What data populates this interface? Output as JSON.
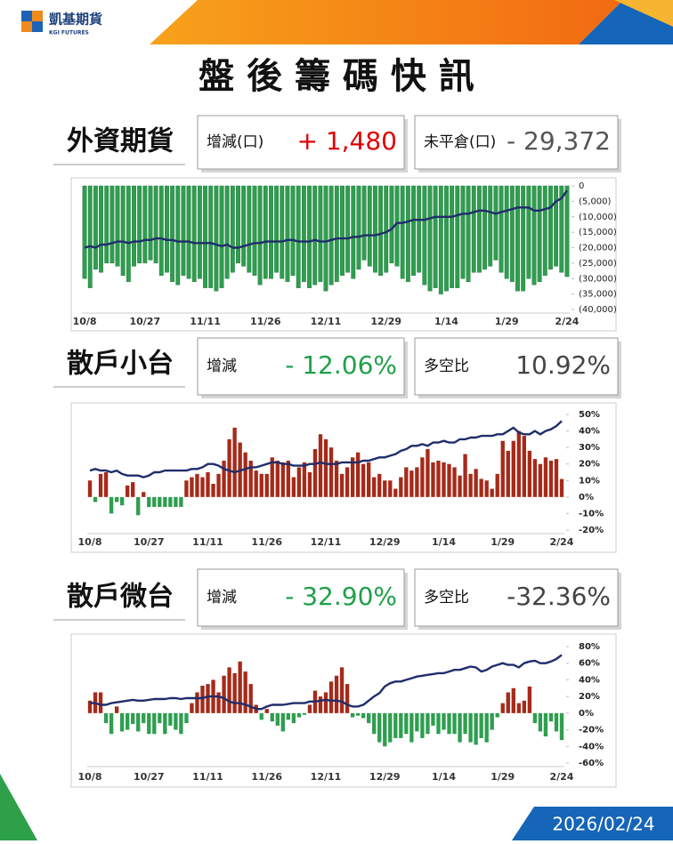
{
  "header": {
    "brand": "凱基期貨",
    "brand_en": "KGI FUTURES"
  },
  "title": "盤 後 籌 碼 快 訊",
  "date": "2026/02/24",
  "sections": [
    {
      "name": "外資期貨",
      "stats": [
        {
          "label": "增減(口)",
          "value": "+ 1,480",
          "color": "#e00000"
        },
        {
          "label": "未平倉(口)",
          "value": "- 29,372",
          "color": "#555555"
        }
      ]
    },
    {
      "name": "散戶小台",
      "stats": [
        {
          "label": "增減",
          "value": "- 12.06%",
          "color": "#1fa04a"
        },
        {
          "label": "多空比",
          "value": "10.92%",
          "color": "#444444"
        }
      ]
    },
    {
      "name": "散戶微台",
      "stats": [
        {
          "label": "增減",
          "value": "- 32.90%",
          "color": "#1fa04a"
        },
        {
          "label": "多空比",
          "value": "-32.36%",
          "color": "#444444"
        }
      ]
    }
  ],
  "chart_data": [
    {
      "type": "bar",
      "categories": [
        "10/8",
        null,
        null,
        null,
        null,
        null,
        null,
        null,
        null,
        null,
        null,
        "10/27",
        null,
        null,
        null,
        null,
        null,
        null,
        null,
        null,
        null,
        null,
        "11/11",
        null,
        null,
        null,
        null,
        null,
        null,
        null,
        null,
        null,
        null,
        "11/26",
        null,
        null,
        null,
        null,
        null,
        null,
        null,
        null,
        null,
        null,
        "12/11",
        null,
        null,
        null,
        null,
        null,
        null,
        null,
        null,
        null,
        null,
        "12/29",
        null,
        null,
        null,
        null,
        null,
        null,
        null,
        null,
        null,
        null,
        "1/14",
        null,
        null,
        null,
        null,
        null,
        null,
        null,
        null,
        null,
        null,
        "1/29",
        null,
        null,
        null,
        null,
        null,
        null,
        null,
        null,
        null,
        null,
        "2/24"
      ],
      "series": [
        {
          "type": "bar",
          "color": "#2e9e4f",
          "values": [
            -30000,
            -33000,
            -27000,
            -28000,
            -25000,
            -25000,
            -26000,
            -29000,
            -31000,
            -26000,
            -25000,
            -25000,
            -24000,
            -25000,
            -29000,
            -28000,
            -31000,
            -32000,
            -29000,
            -30000,
            -31000,
            -30000,
            -33000,
            -33000,
            -34000,
            -33000,
            -30000,
            -28000,
            -25000,
            -26000,
            -28000,
            -29000,
            -32000,
            -30000,
            -30000,
            -28000,
            -30000,
            -31000,
            -29000,
            -33000,
            -31000,
            -33000,
            -32000,
            -31000,
            -34000,
            -32000,
            -31000,
            -29000,
            -28000,
            -30000,
            -27000,
            -24000,
            -26000,
            -28000,
            -29000,
            -28000,
            -25000,
            -26000,
            -30000,
            -31000,
            -29000,
            -28000,
            -32000,
            -34000,
            -33000,
            -35000,
            -34000,
            -33000,
            -33000,
            -30000,
            -31000,
            -28000,
            -28000,
            -27000,
            -26000,
            -24000,
            -28000,
            -30000,
            -31000,
            -34000,
            -34000,
            -30000,
            -32000,
            -31000,
            -29000,
            -27000,
            -26000,
            -28000,
            -29372
          ]
        },
        {
          "type": "line",
          "color": "#1f2d6b",
          "values": [
            -20000,
            -19500,
            -20000,
            -19000,
            -19000,
            -18500,
            -18000,
            -18000,
            -18500,
            -18000,
            -18000,
            -17500,
            -17500,
            -17000,
            -17000,
            -17500,
            -17500,
            -18000,
            -18000,
            -18000,
            -18500,
            -18500,
            -18500,
            -18500,
            -19000,
            -19500,
            -19000,
            -20000,
            -20000,
            -19500,
            -19000,
            -18500,
            -18500,
            -18000,
            -18000,
            -18000,
            -18000,
            -17500,
            -17500,
            -18000,
            -18000,
            -18000,
            -17500,
            -18000,
            -18000,
            -17500,
            -17000,
            -17000,
            -17000,
            -16500,
            -16500,
            -16000,
            -16000,
            -16000,
            -15500,
            -15000,
            -14000,
            -12000,
            -12000,
            -11500,
            -11000,
            -11000,
            -11000,
            -10500,
            -10000,
            -10000,
            -10000,
            -10000,
            -9500,
            -9000,
            -9000,
            -8500,
            -8000,
            -8000,
            -8500,
            -9000,
            -8500,
            -8000,
            -7500,
            -7000,
            -7000,
            -7000,
            -8000,
            -8000,
            -7500,
            -7000,
            -5000,
            -4000,
            -1500
          ]
        }
      ],
      "ylim": [
        -40000,
        0
      ],
      "yticks": [
        0,
        {
          "value": -5000,
          "label": "(5,000)"
        },
        {
          "value": -10000,
          "label": "(10,000)"
        },
        {
          "value": -15000,
          "label": "(15,000)"
        },
        {
          "value": -20000,
          "label": "(20,000)"
        },
        {
          "value": -25000,
          "label": "(25,000)"
        },
        {
          "value": -30000,
          "label": "(30,000)"
        },
        {
          "value": -35000,
          "label": "(35,000)"
        },
        {
          "value": -40000,
          "label": "(40,000)"
        }
      ],
      "grid": false
    },
    {
      "type": "bar",
      "categories": [
        "10/8",
        null,
        null,
        null,
        null,
        null,
        null,
        null,
        null,
        null,
        null,
        "10/27",
        null,
        null,
        null,
        null,
        null,
        null,
        null,
        null,
        null,
        null,
        "11/11",
        null,
        null,
        null,
        null,
        null,
        null,
        null,
        null,
        null,
        null,
        "11/26",
        null,
        null,
        null,
        null,
        null,
        null,
        null,
        null,
        null,
        null,
        "12/11",
        null,
        null,
        null,
        null,
        null,
        null,
        null,
        null,
        null,
        null,
        "12/29",
        null,
        null,
        null,
        null,
        null,
        null,
        null,
        null,
        null,
        null,
        "1/14",
        null,
        null,
        null,
        null,
        null,
        null,
        null,
        null,
        null,
        null,
        "1/29",
        null,
        null,
        null,
        null,
        null,
        null,
        null,
        null,
        null,
        null,
        "2/24"
      ],
      "series": [
        {
          "type": "bar",
          "color": "#a52a1a",
          "negative_color": "#2e9e4f",
          "values": [
            10,
            -3,
            14,
            15,
            -10,
            -3,
            -5,
            7,
            9,
            -11,
            3,
            -6,
            -6,
            -6,
            -6,
            -6,
            -6,
            -6,
            10,
            12,
            14,
            12,
            15,
            8,
            14,
            22,
            35,
            42,
            33,
            27,
            22,
            16,
            14,
            14,
            24,
            22,
            21,
            22,
            12,
            18,
            21,
            15,
            29,
            38,
            35,
            30,
            22,
            14,
            18,
            24,
            27,
            20,
            21,
            12,
            14,
            10,
            10,
            5,
            12,
            18,
            16,
            18,
            24,
            29,
            21,
            22,
            21,
            20,
            18,
            13,
            26,
            14,
            17,
            11,
            10,
            5,
            14,
            34,
            28,
            34,
            40,
            37,
            28,
            23,
            20,
            24,
            22,
            23,
            10.92
          ]
        },
        {
          "type": "line",
          "color": "#1f2d6b",
          "values": [
            16,
            17,
            16,
            16,
            15,
            16,
            14,
            13,
            13,
            13,
            12,
            13,
            15,
            15,
            16,
            16,
            16,
            16,
            16,
            17,
            17,
            18,
            20,
            20,
            19,
            17,
            16,
            15,
            16,
            17,
            18,
            18,
            19,
            20,
            21,
            21,
            20,
            20,
            19,
            19,
            19,
            20,
            20,
            21,
            20,
            20,
            20,
            21,
            21,
            21,
            21,
            22,
            22,
            23,
            24,
            24,
            25,
            26,
            28,
            29,
            31,
            31,
            32,
            31,
            33,
            33,
            34,
            33,
            33,
            35,
            35,
            36,
            36,
            37,
            37,
            37,
            38,
            38,
            40,
            42,
            39,
            38,
            38,
            40,
            38,
            40,
            41,
            43,
            46
          ]
        }
      ],
      "ylim": [
        -20,
        50
      ],
      "yticks": [
        {
          "value": 50,
          "label": "50%"
        },
        {
          "value": 40,
          "label": "40%"
        },
        {
          "value": 30,
          "label": "30%"
        },
        {
          "value": 20,
          "label": "20%"
        },
        {
          "value": 10,
          "label": "10%"
        },
        {
          "value": 0,
          "label": "0%"
        },
        {
          "value": -10,
          "label": "-10%"
        },
        {
          "value": -20,
          "label": "-20%"
        }
      ],
      "grid": false
    },
    {
      "type": "bar",
      "categories": [
        "10/8",
        null,
        null,
        null,
        null,
        null,
        null,
        null,
        null,
        null,
        null,
        "10/27",
        null,
        null,
        null,
        null,
        null,
        null,
        null,
        null,
        null,
        null,
        "11/11",
        null,
        null,
        null,
        null,
        null,
        null,
        null,
        null,
        null,
        null,
        "11/26",
        null,
        null,
        null,
        null,
        null,
        null,
        null,
        null,
        null,
        null,
        "12/11",
        null,
        null,
        null,
        null,
        null,
        null,
        null,
        null,
        null,
        null,
        "12/29",
        null,
        null,
        null,
        null,
        null,
        null,
        null,
        null,
        null,
        null,
        "1/14",
        null,
        null,
        null,
        null,
        null,
        null,
        null,
        null,
        null,
        null,
        "1/29",
        null,
        null,
        null,
        null,
        null,
        null,
        null,
        null,
        null,
        null,
        "2/24"
      ],
      "series": [
        {
          "type": "bar",
          "color": "#a52a1a",
          "negative_color": "#2e9e4f",
          "values": [
            15,
            25,
            25,
            -12,
            -25,
            8,
            -22,
            -20,
            -13,
            -22,
            -12,
            -25,
            -25,
            -12,
            -25,
            -15,
            -20,
            -25,
            -12,
            12,
            25,
            33,
            35,
            40,
            25,
            45,
            55,
            48,
            62,
            50,
            35,
            10,
            -8,
            5,
            -10,
            -15,
            -22,
            -8,
            -12,
            -5,
            -2,
            10,
            27,
            20,
            25,
            38,
            45,
            55,
            35,
            -5,
            -3,
            -6,
            -12,
            -25,
            -35,
            -40,
            -35,
            -30,
            -30,
            -25,
            -35,
            -22,
            -30,
            -25,
            -15,
            -25,
            -20,
            -25,
            -25,
            -35,
            -25,
            -35,
            -38,
            -30,
            -35,
            -20,
            -5,
            12,
            25,
            30,
            12,
            15,
            32,
            -12,
            -22,
            -28,
            -10,
            -22,
            -32.36
          ]
        },
        {
          "type": "line",
          "color": "#1f2d6b",
          "values": [
            12,
            12,
            10,
            10,
            12,
            13,
            14,
            15,
            16,
            15,
            15,
            16,
            17,
            17,
            17,
            18,
            18,
            17,
            18,
            18,
            18,
            18,
            20,
            20,
            20,
            18,
            14,
            12,
            12,
            10,
            8,
            5,
            5,
            8,
            10,
            10,
            10,
            11,
            12,
            12,
            12,
            14,
            14,
            15,
            16,
            15,
            15,
            14,
            10,
            8,
            8,
            10,
            15,
            20,
            24,
            32,
            36,
            38,
            38,
            40,
            42,
            44,
            45,
            46,
            47,
            48,
            48,
            50,
            52,
            52,
            54,
            56,
            55,
            50,
            52,
            56,
            58,
            60,
            58,
            58,
            55,
            60,
            62,
            63,
            60,
            60,
            62,
            65,
            70
          ]
        }
      ],
      "ylim": [
        -60,
        80
      ],
      "yticks": [
        {
          "value": 80,
          "label": "80%"
        },
        {
          "value": 60,
          "label": "60%"
        },
        {
          "value": 40,
          "label": "40%"
        },
        {
          "value": 20,
          "label": "20%"
        },
        {
          "value": 0,
          "label": "0%"
        },
        {
          "value": -20,
          "label": "-20%"
        },
        {
          "value": -40,
          "label": "-40%"
        },
        {
          "value": -60,
          "label": "-60%"
        }
      ],
      "grid": false
    }
  ]
}
